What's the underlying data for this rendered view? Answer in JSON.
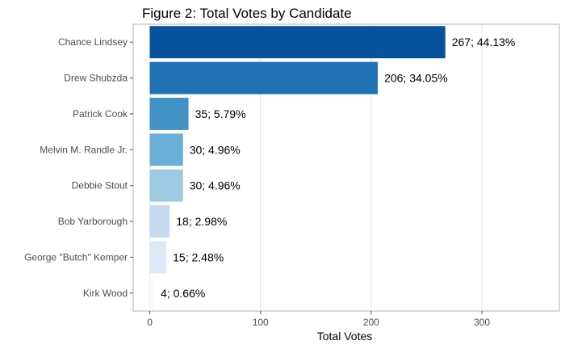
{
  "chart_data": {
    "type": "bar",
    "orientation": "horizontal",
    "title": "Figure 2: Total Votes by Candidate",
    "xlabel": "Total Votes",
    "ylabel": "",
    "xlim": [
      -15,
      370
    ],
    "xticks": [
      0,
      100,
      200,
      300
    ],
    "grid": true,
    "categories": [
      "Chance Lindsey",
      "Drew Shubzda",
      "Patrick Cook",
      "Melvin M. Randle Jr.",
      "Debbie Stout",
      "Bob Yarborough",
      "George \"Butch\" Kemper",
      "Kirk Wood"
    ],
    "values": [
      267,
      206,
      35,
      30,
      30,
      18,
      15,
      4
    ],
    "data_labels": [
      "267; 44.13%",
      "206; 34.05%",
      "35; 5.79%",
      "30; 4.96%",
      "30; 4.96%",
      "18; 2.98%",
      "15; 2.48%",
      "4; 0.66%"
    ],
    "colors": [
      "#08519c",
      "#2171b5",
      "#4292c6",
      "#6baed6",
      "#9ecae1",
      "#c6dbef",
      "#deebf7",
      "#f7fbff"
    ]
  }
}
